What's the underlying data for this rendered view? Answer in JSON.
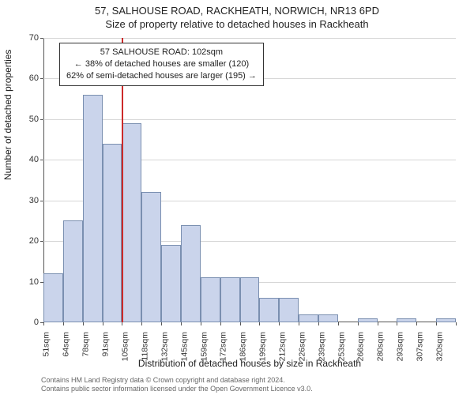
{
  "titles": {
    "line1": "57, SALHOUSE ROAD, RACKHEATH, NORWICH, NR13 6PD",
    "line2": "Size of property relative to detached houses in Rackheath"
  },
  "chart": {
    "type": "histogram",
    "background_color": "#ffffff",
    "grid_color": "#d6d6d6",
    "axis_color": "#555555",
    "bar_fill": "#cad4eb",
    "bar_stroke": "#7a8fb0",
    "refline_color": "#cc2a2a",
    "y": {
      "min": 0,
      "max": 70,
      "step": 10,
      "title": "Number of detached properties",
      "title_fontsize": 12,
      "tick_fontsize": 11
    },
    "x": {
      "ticks": [
        "51sqm",
        "64sqm",
        "78sqm",
        "91sqm",
        "105sqm",
        "118sqm",
        "132sqm",
        "145sqm",
        "159sqm",
        "172sqm",
        "186sqm",
        "199sqm",
        "212sqm",
        "226sqm",
        "239sqm",
        "253sqm",
        "266sqm",
        "280sqm",
        "293sqm",
        "307sqm",
        "320sqm"
      ],
      "title": "Distribution of detached houses by size in Rackheath",
      "title_fontsize": 12,
      "tick_fontsize": 10.5
    },
    "bars": [
      12,
      25,
      56,
      44,
      49,
      32,
      19,
      24,
      11,
      11,
      11,
      6,
      6,
      2,
      2,
      0,
      1,
      0,
      1,
      0,
      1
    ],
    "bar_width_ratio": 1.0,
    "reference": {
      "x_position_ratio": 0.19,
      "label_lines": [
        "57 SALHOUSE ROAD: 102sqm",
        "← 38% of detached houses are smaller (120)",
        "62% of semi-detached houses are larger (195) →"
      ]
    }
  },
  "credits": {
    "line1": "Contains HM Land Registry data © Crown copyright and database right 2024.",
    "line2": "Contains public sector information licensed under the Open Government Licence v3.0."
  }
}
